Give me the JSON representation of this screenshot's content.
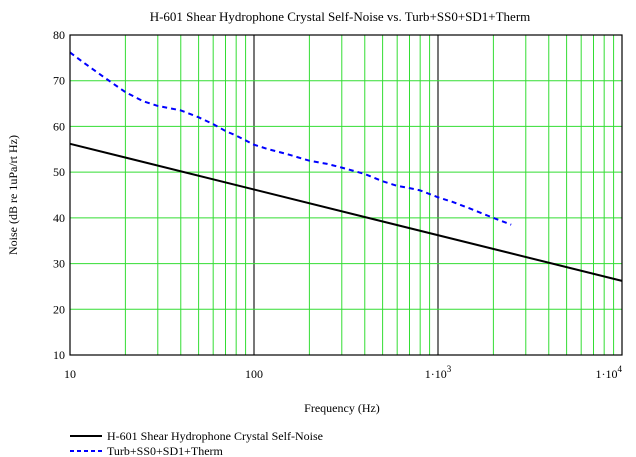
{
  "chart_data": {
    "type": "line",
    "title": "H-601 Shear Hydrophone Crystal Self-Noise vs. Turb+SS0+SD1+Therm",
    "xlabel": "Frequency (Hz)",
    "ylabel": "Noise (dB re 1uPa/rt Hz)",
    "x_scale": "log",
    "xlim": [
      10,
      10000
    ],
    "ylim": [
      10,
      80
    ],
    "grid": true,
    "legend_position": "bottom-left",
    "x_ticks": [
      {
        "value": 10,
        "base": "10",
        "exp": ""
      },
      {
        "value": 100,
        "base": "100",
        "exp": ""
      },
      {
        "value": 1000,
        "base": "1·10",
        "exp": "3"
      },
      {
        "value": 10000,
        "base": "1·10",
        "exp": "4"
      }
    ],
    "y_ticks": [
      "10",
      "20",
      "30",
      "40",
      "50",
      "60",
      "70",
      "80"
    ],
    "series": [
      {
        "name": "H-601 Shear Hydrophone Crystal Self-Noise",
        "color": "#000000",
        "style": "solid",
        "x": [
          10,
          10000
        ],
        "y": [
          56.2,
          26.2
        ]
      },
      {
        "name": "Turb+SS0+SD1+Therm",
        "color": "#0000ff",
        "style": "dashed",
        "x": [
          10,
          12,
          15,
          20,
          25,
          30,
          40,
          50,
          60,
          70,
          80,
          100,
          120,
          150,
          200,
          250,
          300,
          400,
          500,
          600,
          700,
          800,
          1000,
          1200,
          1500,
          2000,
          2500
        ],
        "y": [
          76.2,
          73.8,
          71.0,
          67.5,
          65.5,
          64.5,
          63.5,
          62.0,
          60.5,
          59.0,
          58.0,
          56.0,
          55.0,
          54.0,
          52.5,
          51.8,
          51.0,
          49.6,
          48.0,
          47.0,
          46.5,
          46.0,
          44.5,
          43.5,
          42.0,
          40.0,
          38.5
        ]
      }
    ]
  }
}
